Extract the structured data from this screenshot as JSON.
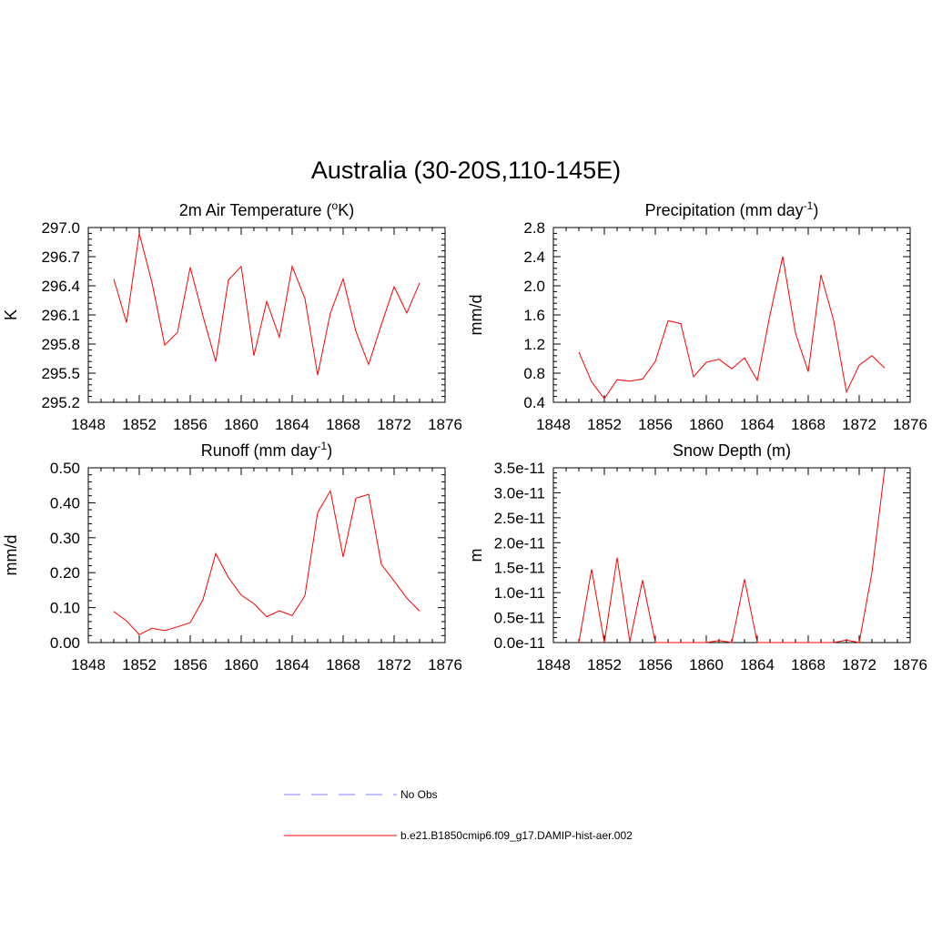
{
  "title": "Australia (30-20S,110-145E)",
  "colors": {
    "model": "#ff0000",
    "obs": "#9999ff",
    "axis": "#000000"
  },
  "legend": {
    "obs_label": "No Obs",
    "model_label": "b.e21.B1850cmip6.f09_g17.DAMIP-hist-aer.002"
  },
  "chart_data": [
    {
      "type": "line",
      "title": "2m Air Temperature (",
      "title_sup": "o",
      "title_after": "K)",
      "ylabel": "K",
      "xlim": [
        1848,
        1876
      ],
      "ylim": [
        295.2,
        297.0
      ],
      "xticks": [
        "1848",
        "1852",
        "1856",
        "1860",
        "1864",
        "1868",
        "1872",
        "1876"
      ],
      "yticks": [
        "295.2",
        "295.5",
        "295.8",
        "296.1",
        "296.4",
        "296.7",
        "297.0"
      ],
      "series": [
        {
          "x": [
            1850,
            1851,
            1852,
            1853,
            1854,
            1855,
            1856,
            1857,
            1858,
            1859,
            1860,
            1861,
            1862,
            1863,
            1864,
            1865,
            1866,
            1867,
            1868,
            1869,
            1870,
            1871,
            1872,
            1873,
            1874
          ],
          "values": [
            296.47,
            296.02,
            296.94,
            296.43,
            295.79,
            295.92,
            296.59,
            296.09,
            295.62,
            296.46,
            296.6,
            295.68,
            296.24,
            295.87,
            296.6,
            296.27,
            295.48,
            296.12,
            296.47,
            295.93,
            295.59,
            296.0,
            296.39,
            296.12,
            296.43
          ]
        }
      ]
    },
    {
      "type": "line",
      "title": "Precipitation (mm day",
      "title_sup": "-1",
      "title_after": ")",
      "ylabel": "mm/d",
      "xlim": [
        1848,
        1876
      ],
      "ylim": [
        0.4,
        2.8
      ],
      "xticks": [
        "1848",
        "1852",
        "1856",
        "1860",
        "1864",
        "1868",
        "1872",
        "1876"
      ],
      "yticks": [
        "0.4",
        "0.8",
        "1.2",
        "1.6",
        "2.0",
        "2.4",
        "2.8"
      ],
      "series": [
        {
          "x": [
            1850,
            1851,
            1852,
            1853,
            1854,
            1855,
            1856,
            1857,
            1858,
            1859,
            1860,
            1861,
            1862,
            1863,
            1864,
            1865,
            1866,
            1867,
            1868,
            1869,
            1870,
            1871,
            1872,
            1873,
            1874
          ],
          "values": [
            1.09,
            0.68,
            0.45,
            0.71,
            0.69,
            0.72,
            0.96,
            1.52,
            1.48,
            0.75,
            0.95,
            0.99,
            0.86,
            1.01,
            0.7,
            1.6,
            2.4,
            1.35,
            0.82,
            2.15,
            1.52,
            0.54,
            0.91,
            1.04,
            0.87
          ]
        }
      ]
    },
    {
      "type": "line",
      "title": "Runoff (mm day",
      "title_sup": "-1",
      "title_after": ")",
      "ylabel": "mm/d",
      "xlim": [
        1848,
        1876
      ],
      "ylim": [
        0.0,
        0.5
      ],
      "xticks": [
        "1848",
        "1852",
        "1856",
        "1860",
        "1864",
        "1868",
        "1872",
        "1876"
      ],
      "yticks": [
        "0.00",
        "0.10",
        "0.20",
        "0.30",
        "0.40",
        "0.50"
      ],
      "series": [
        {
          "x": [
            1850,
            1851,
            1852,
            1853,
            1854,
            1855,
            1856,
            1857,
            1858,
            1859,
            1860,
            1861,
            1862,
            1863,
            1864,
            1865,
            1866,
            1867,
            1868,
            1869,
            1870,
            1871,
            1872,
            1873,
            1874
          ],
          "values": [
            0.089,
            0.062,
            0.023,
            0.041,
            0.034,
            0.045,
            0.057,
            0.123,
            0.255,
            0.186,
            0.136,
            0.111,
            0.074,
            0.091,
            0.077,
            0.134,
            0.372,
            0.434,
            0.245,
            0.413,
            0.424,
            0.224,
            0.176,
            0.127,
            0.09
          ]
        }
      ]
    },
    {
      "type": "line",
      "title": "Snow Depth (m)",
      "title_sup": "",
      "title_after": "",
      "ylabel": "m",
      "xlim": [
        1848,
        1876
      ],
      "ylim": [
        0.0,
        3.5e-11
      ],
      "xticks": [
        "1848",
        "1852",
        "1856",
        "1860",
        "1864",
        "1868",
        "1872",
        "1876"
      ],
      "yticks": [
        "0.0e-11",
        "0.5e-11",
        "1.0e-11",
        "1.5e-11",
        "2.0e-11",
        "2.5e-11",
        "3.0e-11",
        "3.5e-11"
      ],
      "series": [
        {
          "x": [
            1850,
            1851,
            1852,
            1853,
            1854,
            1855,
            1856,
            1857,
            1858,
            1859,
            1860,
            1861,
            1862,
            1863,
            1864,
            1865,
            1866,
            1867,
            1868,
            1869,
            1870,
            1871,
            1872,
            1873,
            1874
          ],
          "values": [
            0,
            1.47e-11,
            0,
            1.7e-11,
            2e-13,
            1.25e-11,
            0,
            0,
            0,
            0,
            0,
            4e-13,
            0,
            1.27e-11,
            0,
            0,
            0,
            0,
            0,
            0,
            0,
            5e-13,
            0,
            1.4e-11,
            3.47e-11
          ]
        }
      ]
    }
  ]
}
